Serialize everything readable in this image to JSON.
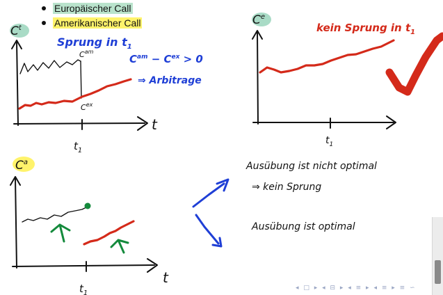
{
  "bullets": [
    {
      "label": "Europäischer Call",
      "highlight": "#b9e3cc"
    },
    {
      "label": "Amerikanischer Call",
      "highlight": "#fff36b"
    }
  ],
  "panel_top_left": {
    "axis_label": "C",
    "axis_superscript": "t",
    "jump_note": "Sprung in t",
    "jump_note_sub": "1",
    "upper_curve_label": "C",
    "upper_curve_sup": "am",
    "lower_curve_label": "C",
    "lower_curve_sup": "ex",
    "inequality": "C",
    "inequality_sup1": "am",
    "inequality_mid": " − C",
    "inequality_sup2": "ex",
    "inequality_end": " > 0",
    "arbitrage": "⇒ Arbitrage",
    "time_label": "t",
    "tick_label": "t",
    "tick_sub": "1"
  },
  "panel_top_right": {
    "axis_label": "C",
    "axis_superscript": "e",
    "note": "kein Sprung in t",
    "note_sub": "1",
    "tick_label": "t",
    "tick_sub": "1"
  },
  "panel_bottom_left": {
    "axis_label": "C",
    "axis_superscript": "a",
    "time_label": "t",
    "tick_label": "t",
    "tick_sub": "1"
  },
  "notes": {
    "line1": "Ausübung ist nicht optimal",
    "line2": "⇒ kein Sprung",
    "line3": "Ausübung ist optimal"
  },
  "nav": "◂ □ ▸ ◂ ⊟ ▸ ◂ ≡ ▸ ◂ ≡ ▸ ≡ ∽",
  "colors": {
    "black_ink": "#111111",
    "red_ink": "#d42a1a",
    "blue_ink": "#1f3fd6",
    "green_ink": "#148a3c",
    "teal_highlight": "#a9dbc6",
    "yellow_highlight": "#fff36b"
  }
}
